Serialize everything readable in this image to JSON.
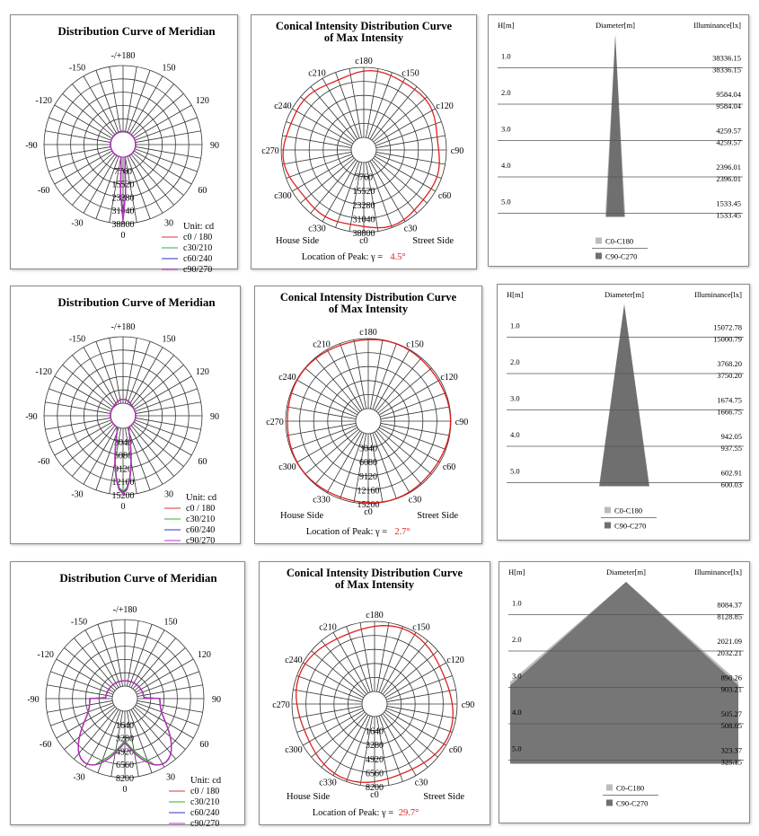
{
  "common": {
    "meridian_title": "Distribution Curve of  Meridian",
    "conical_title_1": "Conical Intensity Distribution Curve",
    "conical_title_2": "of  Max Intensity",
    "unit_label": "Unit: cd",
    "house_side": "House Side",
    "street_side": "Street Side",
    "peak_prefix": "Location of Peak:  γ  =",
    "h_header": "H[m]",
    "diameter_header": "Diameter[m]",
    "illuminance_header": "Illuminance[lx]",
    "legend_c0": "C0-C180",
    "legend_c90": "C90-C270",
    "angle_labels": [
      "-/+180",
      "150",
      "120",
      "90",
      "60",
      "30",
      "0",
      "-30",
      "-60",
      "-90",
      "-120",
      "-150"
    ],
    "c_labels": [
      "c0",
      "c30",
      "c60",
      "c90",
      "c120",
      "c150",
      "c180",
      "c210",
      "c240",
      "c270",
      "c300",
      "c330"
    ],
    "series": [
      {
        "name": "c0 / 180",
        "color": "#e03030"
      },
      {
        "name": "c30/210",
        "color": "#30b030"
      },
      {
        "name": "c60/240",
        "color": "#3030c0"
      },
      {
        "name": "c90/270",
        "color": "#c030c0"
      }
    ]
  },
  "chart_data": [
    {
      "type": "polar",
      "radial_ticks": [
        "7760",
        "15520",
        "23280",
        "31040",
        "38800"
      ],
      "peak": "4.5°",
      "h_labels": [
        "1.0",
        "2.0",
        "3.0",
        "4.0",
        "5.0"
      ],
      "lux_c0": [
        "38336.15",
        "9584.04",
        "4259.57",
        "2396.01",
        "1533.45"
      ],
      "lux_c90": [
        "38336.15",
        "9584.04",
        "4259.57",
        "2396.01",
        "1533.45"
      ],
      "cone_half_width_c0": 0.05,
      "cone_half_width_c90": 0.045,
      "conical_ratio": 0.93,
      "meridian_profile": {
        "max_frac": 0.95,
        "width": 0.07,
        "back": 0.04
      }
    },
    {
      "type": "polar",
      "radial_ticks": [
        "3040",
        "6080",
        "9120",
        "12160",
        "15200"
      ],
      "peak": "2.7°",
      "h_labels": [
        "1.0",
        "2.0",
        "3.0",
        "4.0",
        "5.0"
      ],
      "lux_c0": [
        "15072.78",
        "3768.20",
        "1674.75",
        "942.05",
        "602.91"
      ],
      "lux_c90": [
        "15000.79",
        "3750.20",
        "1666.75",
        "937.55",
        "600.03"
      ],
      "cone_half_width_c0": 0.13,
      "cone_half_width_c90": 0.128,
      "conical_ratio": 0.985,
      "meridian_profile": {
        "max_frac": 0.98,
        "width": 0.22,
        "back": 0.2
      }
    },
    {
      "type": "polar",
      "radial_ticks": [
        "1640",
        "3280",
        "4920",
        "6560",
        "8200"
      ],
      "peak": "29.7°",
      "h_labels": [
        "1.0",
        "2.0",
        "3.0",
        "4.0",
        "5.0"
      ],
      "lux_c0": [
        "8084.37",
        "2021.09",
        "898.26",
        "505.27",
        "323.37"
      ],
      "lux_c90": [
        "8128.85",
        "2032.21",
        "903.21",
        "508.05",
        "325.15"
      ],
      "cone_half_width_c0": 0.6,
      "cone_half_width_c90": 0.6,
      "conical_ratio": 0.93,
      "meridian_profile": {
        "max_frac": 0.95,
        "width": 0.5,
        "back": 0.1
      }
    }
  ]
}
